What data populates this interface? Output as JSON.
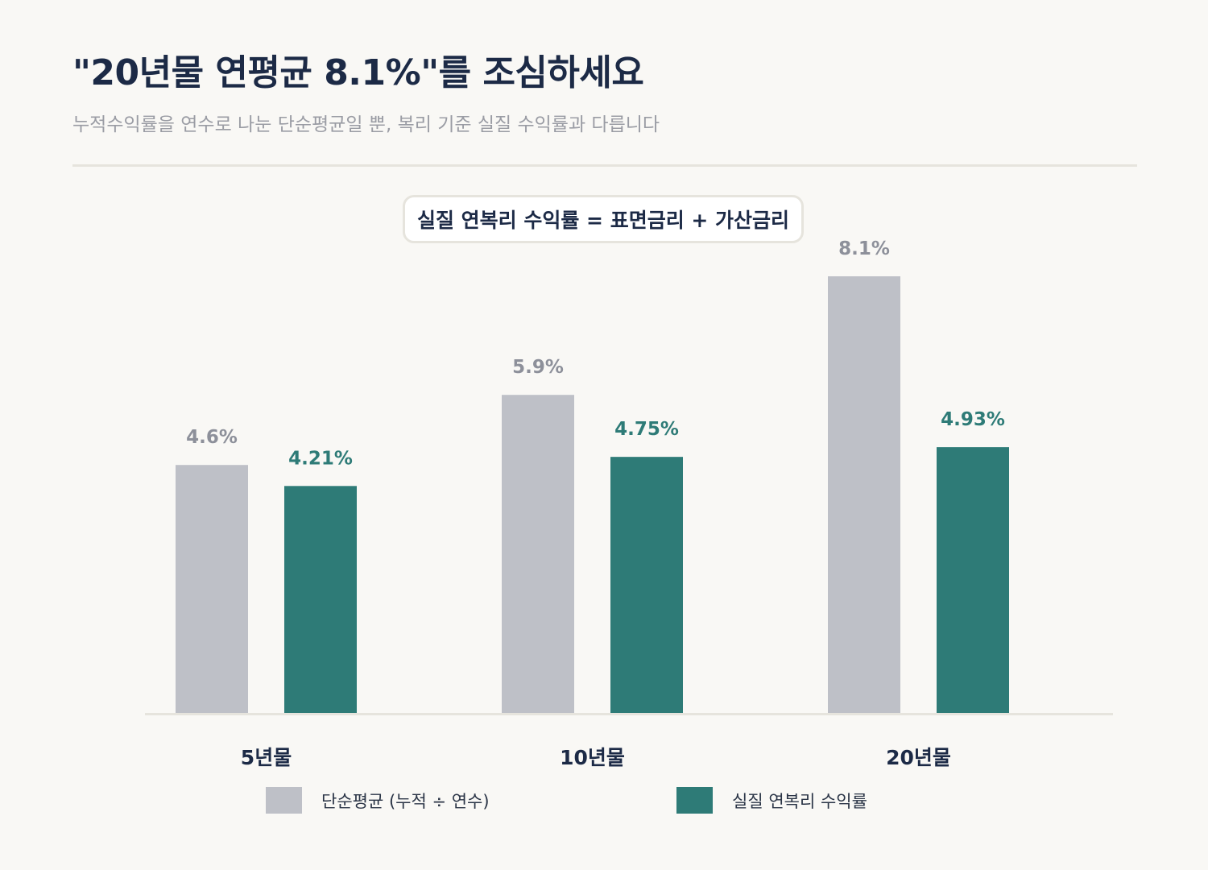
{
  "header": {
    "title": "\"20년물 연평균 8.1%\"를 조심하세요",
    "subtitle": "누적수익률을 연수로 나눈 단순평균일 뿐, 복리 기준 실질 수익률과 다릅니다"
  },
  "formula": "실질 연복리 수익률 = 표면금리 + 가산금리",
  "colors": {
    "simple": "#bec0c7",
    "real": "#2e7b77",
    "simple_label": "#8d909a",
    "real_label": "#2e7b77",
    "axis": "#e6e4dd",
    "category_label": "#1c2a46"
  },
  "chart_data": {
    "type": "bar",
    "categories": [
      "5년물",
      "10년물",
      "20년물"
    ],
    "series": [
      {
        "name": "단순평균 (누적 ÷ 연수)",
        "values": [
          4.6,
          5.9,
          8.1
        ],
        "labels": [
          "4.6%",
          "5.9%",
          "8.1%"
        ]
      },
      {
        "name": "실질 연복리 수익률",
        "values": [
          4.21,
          4.75,
          4.93
        ],
        "labels": [
          "4.21%",
          "4.75%",
          "4.93%"
        ]
      }
    ],
    "ylim": [
      0,
      8.1
    ],
    "grid": false,
    "legend": "bottom"
  },
  "legend": {
    "items": [
      {
        "label": "단순평균 (누적 ÷ 연수)",
        "color": "#bec0c7"
      },
      {
        "label": "실질 연복리 수익률",
        "color": "#2e7b77"
      }
    ]
  }
}
